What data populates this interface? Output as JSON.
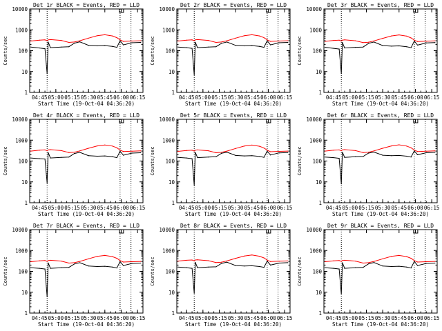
{
  "colors": {
    "events": "#000000",
    "lld": "#ff0000",
    "axes": "#000000",
    "background": "#ffffff"
  },
  "chart_data": [
    {
      "type": "line",
      "title": "Det 1r BLACK = Events, RED = LLD",
      "xlabel": "Start Time (19-Oct-04 04:36:20)",
      "ylabel": "Counts/sec",
      "yscale": "log",
      "ylim": [
        1,
        10000
      ],
      "yticks": [
        "10000",
        "1000",
        "100",
        "10",
        "1"
      ],
      "xticks": [
        "04:45",
        "05:00",
        "05:15",
        "05:30",
        "05:45",
        "06:00",
        "06:15"
      ],
      "xlim": [
        "04:36",
        "06:20"
      ],
      "dotted_lines": [
        "04:52",
        "05:59",
        "06:09"
      ],
      "series": [
        {
          "name": "Events",
          "color": "#000000"
        },
        {
          "name": "LLD",
          "color": "#ff0000"
        }
      ],
      "x": [
        "04:37",
        "04:45",
        "04:50",
        "04:52",
        "04:53",
        "04:55",
        "05:05",
        "05:12",
        "05:17",
        "05:22",
        "05:30",
        "05:38",
        "05:45",
        "05:52",
        "05:56",
        "05:59",
        "06:02",
        "06:10",
        "06:18"
      ],
      "events": [
        150,
        135,
        125,
        8,
        260,
        140,
        150,
        155,
        230,
        265,
        180,
        170,
        175,
        160,
        145,
        300,
        190,
        240,
        250
      ],
      "lld": [
        290,
        320,
        330,
        300,
        330,
        340,
        310,
        250,
        260,
        300,
        400,
        520,
        580,
        510,
        420,
        330,
        280,
        290,
        300
      ]
    },
    {
      "type": "line",
      "title": "Det 2r BLACK = Events, RED = LLD",
      "xlabel": "Start Time (19-Oct-04 04:36:20)",
      "ylabel": "Counts/sec",
      "yscale": "log",
      "ylim": [
        1,
        10000
      ],
      "yticks": [
        "10000",
        "1000",
        "100",
        "10",
        "1"
      ],
      "xticks": [
        "04:45",
        "05:00",
        "05:15",
        "05:30",
        "05:45",
        "06:00",
        "06:15"
      ],
      "xlim": [
        "04:36",
        "06:20"
      ],
      "dotted_lines": [
        "04:52",
        "05:59",
        "06:09"
      ],
      "series": [
        {
          "name": "Events",
          "color": "#000000"
        },
        {
          "name": "LLD",
          "color": "#ff0000"
        }
      ],
      "x": [
        "04:37",
        "04:45",
        "04:50",
        "04:52",
        "04:53",
        "04:55",
        "05:05",
        "05:12",
        "05:17",
        "05:22",
        "05:30",
        "05:38",
        "05:45",
        "05:52",
        "05:56",
        "05:59",
        "06:02",
        "06:10",
        "06:18"
      ],
      "events": [
        150,
        140,
        130,
        7,
        255,
        140,
        150,
        155,
        225,
        260,
        180,
        170,
        175,
        160,
        145,
        300,
        190,
        240,
        250
      ],
      "lld": [
        290,
        320,
        330,
        300,
        330,
        340,
        310,
        250,
        260,
        300,
        400,
        520,
        580,
        510,
        420,
        330,
        280,
        290,
        300
      ]
    },
    {
      "type": "line",
      "title": "Det 3r BLACK = Events, RED = LLD",
      "xlabel": "Start Time (19-Oct-04 04:36:20)",
      "ylabel": "Counts/sec",
      "yscale": "log",
      "ylim": [
        1,
        10000
      ],
      "yticks": [
        "10000",
        "1000",
        "100",
        "10",
        "1"
      ],
      "xticks": [
        "04:45",
        "05:00",
        "05:15",
        "05:30",
        "05:45",
        "06:00",
        "06:15"
      ],
      "xlim": [
        "04:36",
        "06:20"
      ],
      "dotted_lines": [
        "04:52",
        "05:59",
        "06:09"
      ],
      "series": [
        {
          "name": "Events",
          "color": "#000000"
        },
        {
          "name": "LLD",
          "color": "#ff0000"
        }
      ],
      "x": [
        "04:37",
        "04:45",
        "04:50",
        "04:52",
        "04:53",
        "04:55",
        "05:05",
        "05:12",
        "05:17",
        "05:22",
        "05:30",
        "05:38",
        "05:45",
        "05:52",
        "05:56",
        "05:59",
        "06:02",
        "06:10",
        "06:18"
      ],
      "events": [
        145,
        130,
        120,
        8,
        250,
        135,
        145,
        150,
        225,
        260,
        175,
        165,
        170,
        155,
        140,
        290,
        185,
        235,
        245
      ],
      "lld": [
        280,
        310,
        320,
        290,
        320,
        330,
        300,
        245,
        255,
        295,
        390,
        510,
        570,
        500,
        410,
        320,
        275,
        285,
        295
      ]
    },
    {
      "type": "line",
      "title": "Det 4r BLACK = Events, RED = LLD",
      "xlabel": "Start Time (19-Oct-04 04:36:20)",
      "ylabel": "Counts/sec",
      "yscale": "log",
      "ylim": [
        1,
        10000
      ],
      "yticks": [
        "10000",
        "1000",
        "100",
        "10",
        "1"
      ],
      "xticks": [
        "04:45",
        "05:00",
        "05:15",
        "05:30",
        "05:45",
        "06:00",
        "06:15"
      ],
      "xlim": [
        "04:36",
        "06:20"
      ],
      "dotted_lines": [
        "04:52",
        "05:59",
        "06:09"
      ],
      "series": [
        {
          "name": "Events",
          "color": "#000000"
        },
        {
          "name": "LLD",
          "color": "#ff0000"
        }
      ],
      "x": [
        "04:37",
        "04:45",
        "04:50",
        "04:52",
        "04:53",
        "04:55",
        "05:05",
        "05:12",
        "05:17",
        "05:22",
        "05:30",
        "05:38",
        "05:45",
        "05:52",
        "05:56",
        "05:59",
        "06:02",
        "06:10",
        "06:18"
      ],
      "events": [
        140,
        130,
        125,
        9,
        255,
        140,
        150,
        155,
        230,
        260,
        180,
        170,
        175,
        160,
        145,
        295,
        190,
        240,
        250
      ],
      "lld": [
        300,
        330,
        340,
        310,
        340,
        350,
        315,
        255,
        265,
        305,
        410,
        530,
        590,
        520,
        430,
        335,
        285,
        295,
        305
      ]
    },
    {
      "type": "line",
      "title": "Det 5r BLACK = Events, RED = LLD",
      "xlabel": "Start Time (19-Oct-04 04:36:20)",
      "ylabel": "Counts/sec",
      "yscale": "log",
      "ylim": [
        1,
        10000
      ],
      "yticks": [
        "10000",
        "1000",
        "100",
        "10",
        "1"
      ],
      "xticks": [
        "04:45",
        "05:00",
        "05:15",
        "05:30",
        "05:45",
        "06:00",
        "06:15"
      ],
      "xlim": [
        "04:36",
        "06:20"
      ],
      "dotted_lines": [
        "04:52",
        "05:59",
        "06:09"
      ],
      "series": [
        {
          "name": "Events",
          "color": "#000000"
        },
        {
          "name": "LLD",
          "color": "#ff0000"
        }
      ],
      "x": [
        "04:37",
        "04:45",
        "04:50",
        "04:52",
        "04:53",
        "04:55",
        "05:05",
        "05:12",
        "05:17",
        "05:22",
        "05:30",
        "05:38",
        "05:45",
        "05:52",
        "05:56",
        "05:59",
        "06:02",
        "06:10",
        "06:18"
      ],
      "events": [
        150,
        140,
        130,
        7,
        260,
        145,
        155,
        160,
        235,
        265,
        185,
        175,
        180,
        165,
        150,
        300,
        195,
        245,
        255
      ],
      "lld": [
        290,
        320,
        330,
        300,
        330,
        340,
        310,
        250,
        260,
        300,
        400,
        520,
        580,
        510,
        420,
        330,
        280,
        290,
        300
      ]
    },
    {
      "type": "line",
      "title": "Det 6r BLACK = Events, RED = LLD",
      "xlabel": "Start Time (19-Oct-04 04:36:20)",
      "ylabel": "Counts/sec",
      "yscale": "log",
      "ylim": [
        1,
        10000
      ],
      "yticks": [
        "10000",
        "1000",
        "100",
        "10",
        "1"
      ],
      "xticks": [
        "04:45",
        "05:00",
        "05:15",
        "05:30",
        "05:45",
        "06:00",
        "06:15"
      ],
      "xlim": [
        "04:36",
        "06:20"
      ],
      "dotted_lines": [
        "04:52",
        "05:59",
        "06:09"
      ],
      "series": [
        {
          "name": "Events",
          "color": "#000000"
        },
        {
          "name": "LLD",
          "color": "#ff0000"
        }
      ],
      "x": [
        "04:37",
        "04:45",
        "04:50",
        "04:52",
        "04:53",
        "04:55",
        "05:05",
        "05:12",
        "05:17",
        "05:22",
        "05:30",
        "05:38",
        "05:45",
        "05:52",
        "05:56",
        "05:59",
        "06:02",
        "06:10",
        "06:18"
      ],
      "events": [
        155,
        145,
        135,
        8,
        265,
        150,
        160,
        165,
        240,
        270,
        190,
        180,
        185,
        170,
        155,
        305,
        200,
        250,
        260
      ],
      "lld": [
        300,
        330,
        340,
        310,
        340,
        350,
        315,
        255,
        265,
        305,
        410,
        530,
        600,
        520,
        430,
        335,
        285,
        295,
        305
      ]
    },
    {
      "type": "line",
      "title": "Det 7r BLACK = Events, RED = LLD",
      "xlabel": "Start Time (19-Oct-04 04:36:20)",
      "ylabel": "Counts/sec",
      "yscale": "log",
      "ylim": [
        1,
        10000
      ],
      "yticks": [
        "10000",
        "1000",
        "100",
        "10",
        "1"
      ],
      "xticks": [
        "04:45",
        "05:00",
        "05:15",
        "05:30",
        "05:45",
        "06:00",
        "06:15"
      ],
      "xlim": [
        "04:36",
        "06:20"
      ],
      "dotted_lines": [
        "04:52",
        "05:59",
        "06:09"
      ],
      "series": [
        {
          "name": "Events",
          "color": "#000000"
        },
        {
          "name": "LLD",
          "color": "#ff0000"
        }
      ],
      "x": [
        "04:37",
        "04:45",
        "04:50",
        "04:52",
        "04:53",
        "04:55",
        "05:05",
        "05:12",
        "05:17",
        "05:22",
        "05:30",
        "05:38",
        "05:45",
        "05:52",
        "05:56",
        "05:59",
        "06:02",
        "06:10",
        "06:18"
      ],
      "events": [
        150,
        140,
        130,
        6,
        255,
        140,
        150,
        155,
        225,
        260,
        180,
        170,
        175,
        160,
        145,
        295,
        190,
        240,
        250
      ],
      "lld": [
        290,
        320,
        330,
        300,
        330,
        340,
        310,
        250,
        260,
        300,
        400,
        520,
        580,
        510,
        420,
        330,
        280,
        290,
        300
      ]
    },
    {
      "type": "line",
      "title": "Det 8r BLACK = Events, RED = LLD",
      "xlabel": "Start Time (19-Oct-04 04:36:20)",
      "ylabel": "Counts/sec",
      "yscale": "log",
      "ylim": [
        1,
        10000
      ],
      "yticks": [
        "10000",
        "1000",
        "100",
        "10",
        "1"
      ],
      "xticks": [
        "04:45",
        "05:00",
        "05:15",
        "05:30",
        "05:45",
        "06:00",
        "06:15"
      ],
      "xlim": [
        "04:36",
        "06:20"
      ],
      "dotted_lines": [
        "04:52",
        "05:59",
        "06:09"
      ],
      "series": [
        {
          "name": "Events",
          "color": "#000000"
        },
        {
          "name": "LLD",
          "color": "#ff0000"
        }
      ],
      "x": [
        "04:37",
        "04:45",
        "04:50",
        "04:52",
        "04:53",
        "04:55",
        "05:05",
        "05:12",
        "05:17",
        "05:22",
        "05:30",
        "05:38",
        "05:45",
        "05:52",
        "05:56",
        "05:59",
        "06:02",
        "06:10",
        "06:18"
      ],
      "events": [
        160,
        150,
        140,
        9,
        270,
        150,
        160,
        165,
        240,
        275,
        190,
        180,
        185,
        170,
        155,
        310,
        200,
        250,
        260
      ],
      "lld": [
        310,
        340,
        350,
        320,
        350,
        360,
        325,
        265,
        275,
        315,
        420,
        540,
        610,
        530,
        440,
        345,
        295,
        305,
        315
      ]
    },
    {
      "type": "line",
      "title": "Det 9r BLACK = Events, RED = LLD",
      "xlabel": "Start Time (19-Oct-04 04:36:20)",
      "ylabel": "Counts/sec",
      "yscale": "log",
      "ylim": [
        1,
        10000
      ],
      "yticks": [
        "10000",
        "1000",
        "100",
        "10",
        "1"
      ],
      "xticks": [
        "04:45",
        "05:00",
        "05:15",
        "05:30",
        "05:45",
        "06:00",
        "06:15"
      ],
      "xlim": [
        "04:36",
        "06:20"
      ],
      "dotted_lines": [
        "04:52",
        "05:59",
        "06:09"
      ],
      "series": [
        {
          "name": "Events",
          "color": "#000000"
        },
        {
          "name": "LLD",
          "color": "#ff0000"
        }
      ],
      "x": [
        "04:37",
        "04:45",
        "04:50",
        "04:52",
        "04:53",
        "04:55",
        "05:05",
        "05:12",
        "05:17",
        "05:22",
        "05:30",
        "05:38",
        "05:45",
        "05:52",
        "05:56",
        "05:59",
        "06:02",
        "06:10",
        "06:18"
      ],
      "events": [
        150,
        140,
        130,
        8,
        260,
        140,
        150,
        155,
        230,
        265,
        180,
        170,
        175,
        160,
        145,
        300,
        190,
        240,
        250
      ],
      "lld": [
        290,
        320,
        330,
        300,
        330,
        340,
        310,
        250,
        260,
        300,
        400,
        520,
        580,
        510,
        420,
        330,
        280,
        290,
        300
      ]
    }
  ]
}
